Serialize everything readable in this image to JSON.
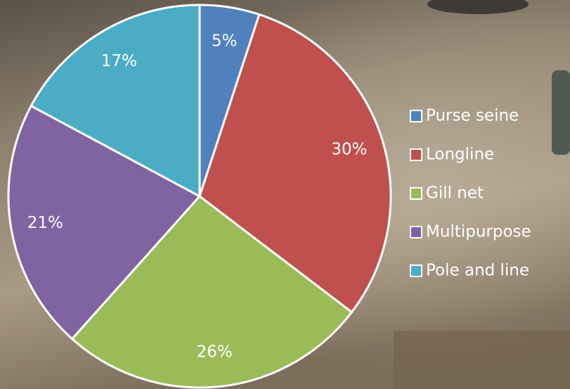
{
  "chart_data": {
    "type": "pie",
    "categories": [
      "Purse seine",
      "Longline",
      "Gill net",
      "Multipurpose",
      "Pole and line"
    ],
    "values": [
      5,
      30,
      26,
      21,
      17
    ],
    "value_labels": [
      "5%",
      "30%",
      "26%",
      "21%",
      "17%"
    ],
    "colors": [
      "#4f81bd",
      "#c0504d",
      "#9bbb59",
      "#8064a2",
      "#4bacc6"
    ],
    "legend": "right"
  }
}
